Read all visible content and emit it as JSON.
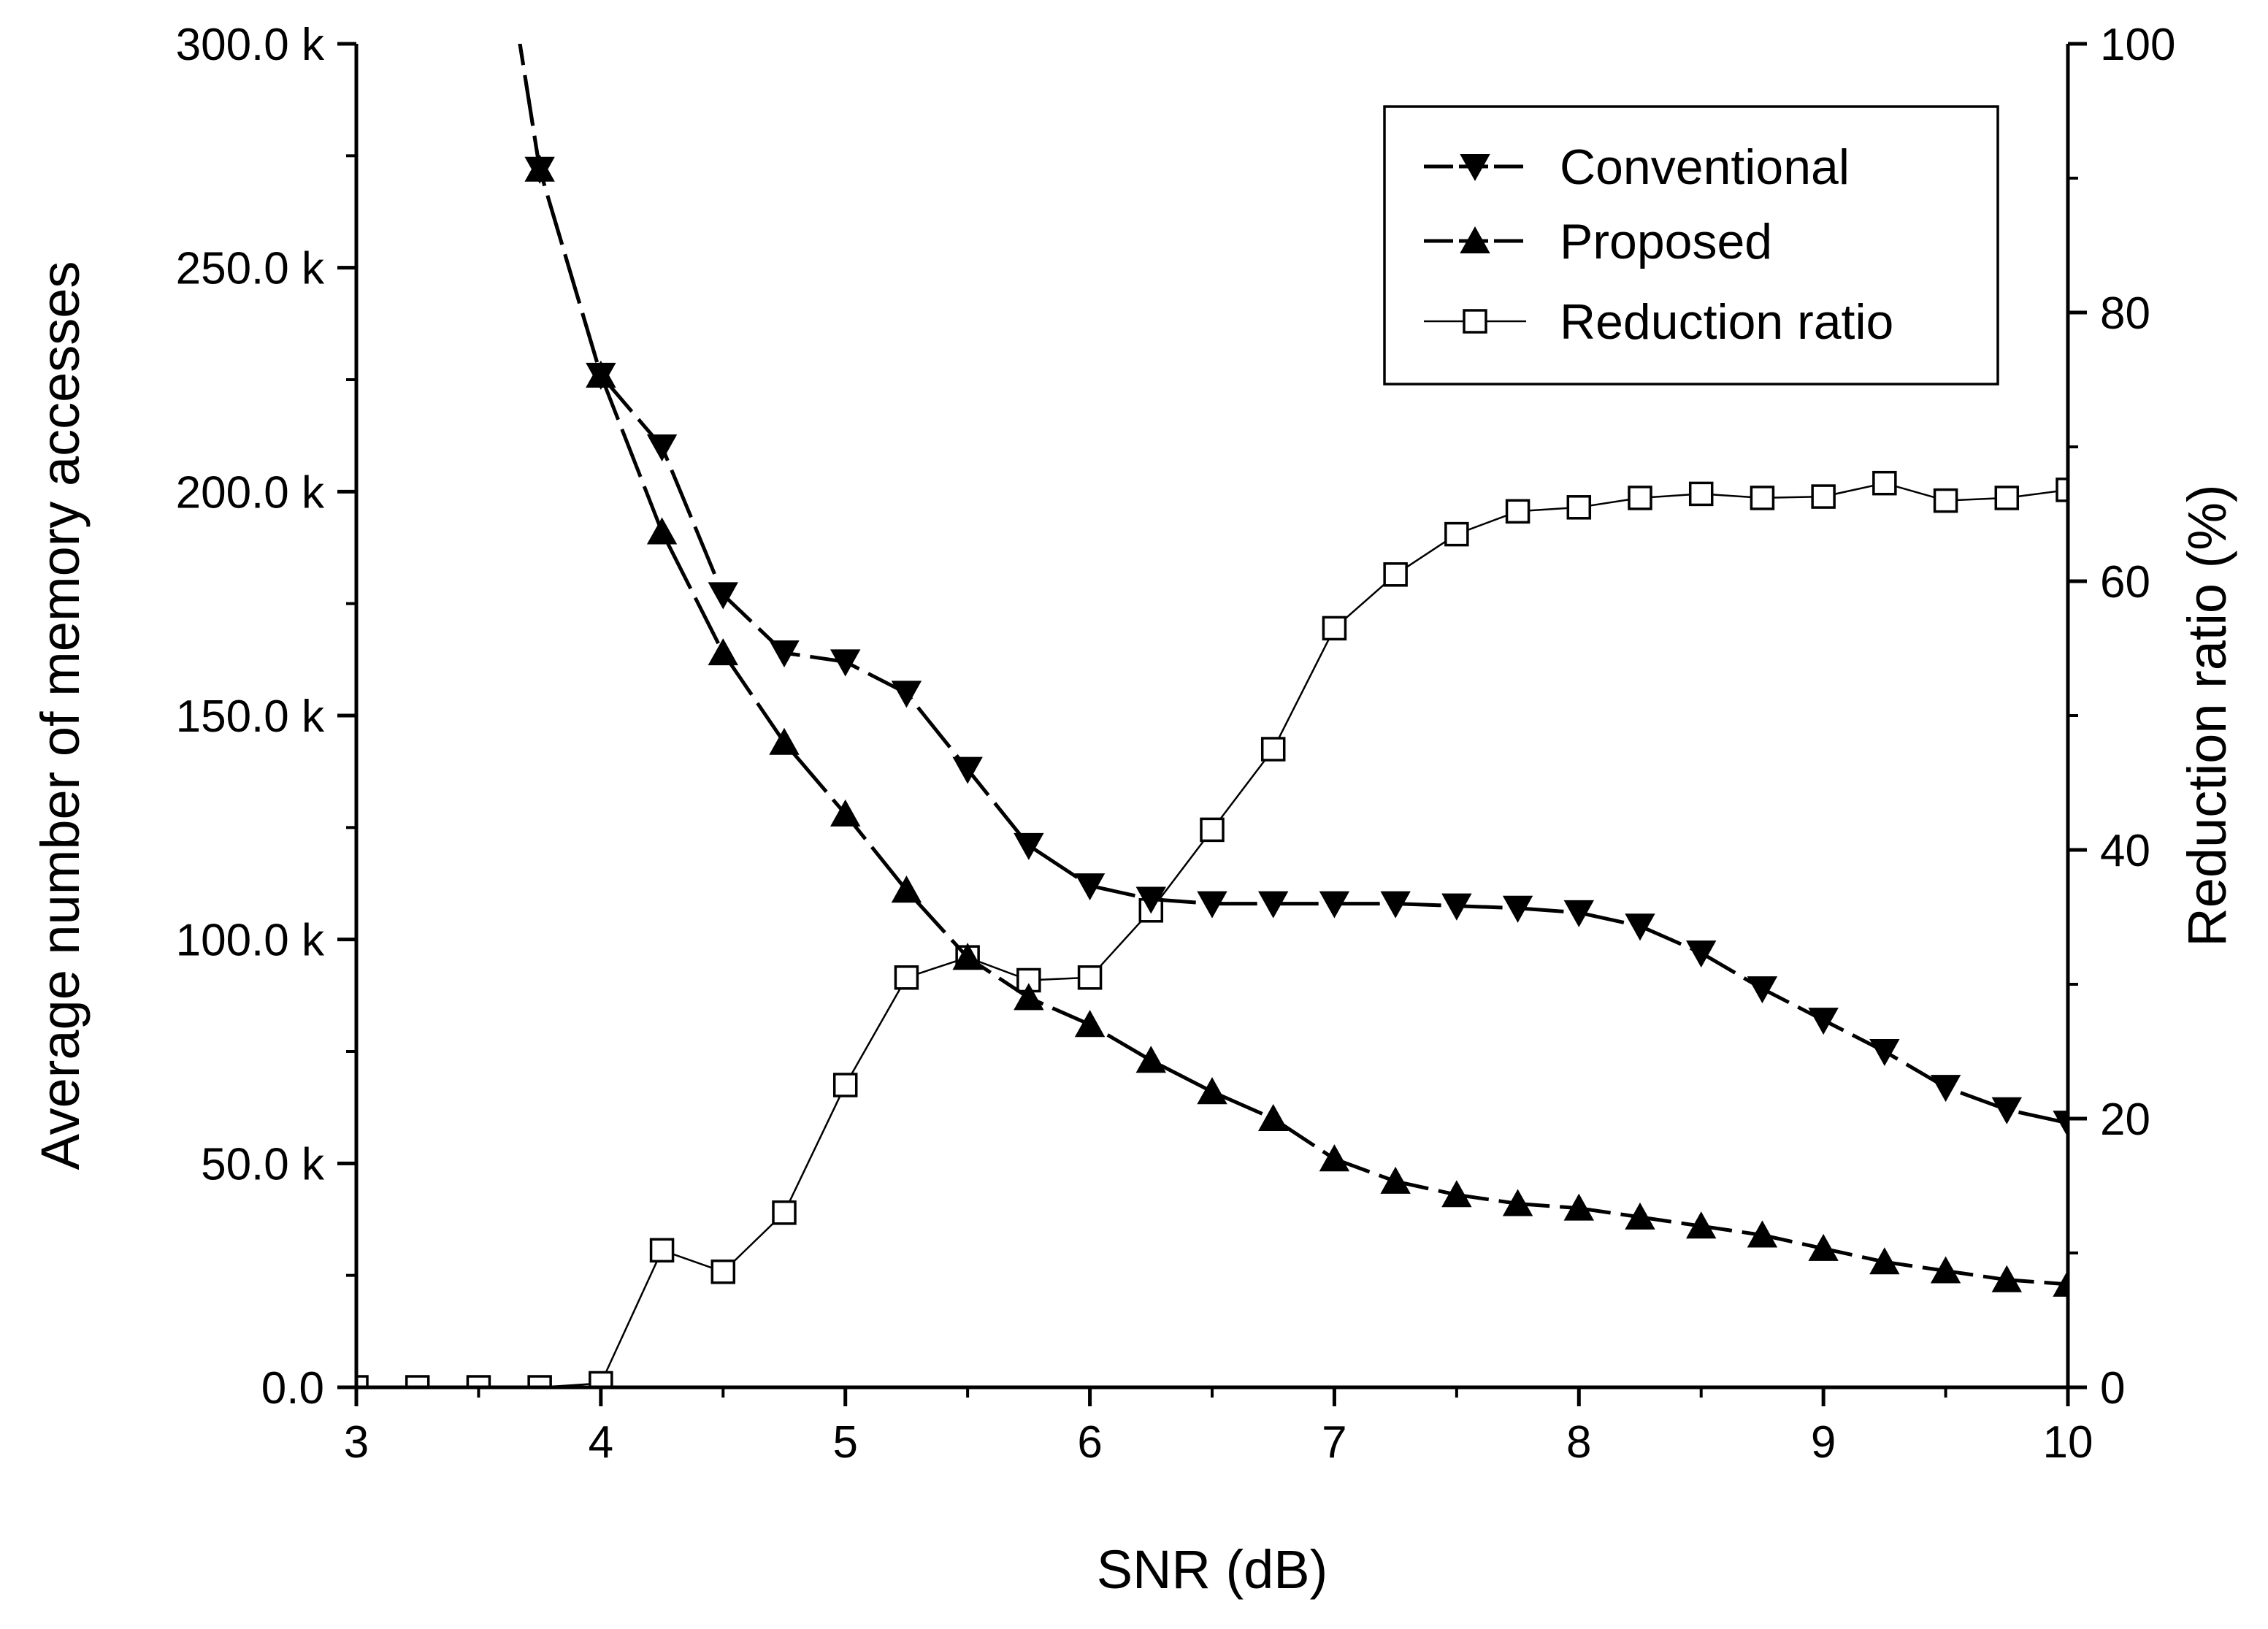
{
  "chart_data": {
    "type": "line",
    "xlabel": "SNR (dB)",
    "ylabel": "Average number of memory accesses",
    "y2label": "Reduction ratio (%)",
    "xlim": [
      3,
      10
    ],
    "ylim": [
      0,
      300000
    ],
    "y2lim": [
      0,
      100
    ],
    "x_ticks": [
      "3",
      "4",
      "5",
      "6",
      "7",
      "8",
      "9",
      "10"
    ],
    "y_ticks": [
      "0.0",
      "50.0 k",
      "100.0 k",
      "150.0 k",
      "200.0 k",
      "250.0 k",
      "300.0 k"
    ],
    "y2_ticks": [
      "0",
      "20",
      "40",
      "60",
      "80",
      "100"
    ],
    "grid": false,
    "legend_position": "top-right",
    "series": [
      {
        "name": "Conventional",
        "axis": "left",
        "marker": "triangle-down",
        "line": "long-dash",
        "color": "#000000",
        "x": [
          3.75,
          4.0,
          4.25,
          4.5,
          4.75,
          5.0,
          5.25,
          5.5,
          5.75,
          6.0,
          6.25,
          6.5,
          6.75,
          7.0,
          7.25,
          7.5,
          7.75,
          8.0,
          8.25,
          8.5,
          8.75,
          9.0,
          9.25,
          9.5,
          9.75,
          10.0
        ],
        "y": [
          272000,
          226000,
          210000,
          177000,
          164000,
          162000,
          155000,
          138000,
          121000,
          112000,
          109000,
          108000,
          108000,
          108000,
          108000,
          107500,
          107000,
          106000,
          103000,
          97000,
          89000,
          82000,
          75000,
          67000,
          62000,
          59000
        ]
      },
      {
        "name": "Proposed",
        "axis": "left",
        "marker": "triangle-up",
        "line": "long-dash",
        "color": "#000000",
        "x": [
          3.75,
          4.0,
          4.25,
          4.5,
          4.75,
          5.0,
          5.25,
          5.5,
          5.75,
          6.0,
          6.25,
          6.5,
          6.75,
          7.0,
          7.25,
          7.5,
          7.75,
          8.0,
          8.25,
          8.5,
          8.75,
          9.0,
          9.25,
          9.5,
          9.75,
          10.0
        ],
        "y": [
          272000,
          226000,
          191000,
          164000,
          144000,
          128000,
          111000,
          96000,
          87000,
          81000,
          73000,
          66000,
          60000,
          51000,
          46000,
          43000,
          41000,
          40000,
          38000,
          36000,
          34000,
          31000,
          28000,
          26000,
          24000,
          23000
        ]
      },
      {
        "name": "Reduction ratio",
        "axis": "right",
        "marker": "square-open",
        "line": "solid-thin",
        "color": "#000000",
        "x": [
          3.0,
          3.25,
          3.5,
          3.75,
          4.0,
          4.25,
          4.5,
          4.75,
          5.0,
          5.25,
          5.5,
          5.75,
          6.0,
          6.25,
          6.5,
          6.75,
          7.0,
          7.25,
          7.5,
          7.75,
          8.0,
          8.25,
          8.5,
          8.75,
          9.0,
          9.25,
          9.5,
          9.75,
          10.0
        ],
        "y": [
          0,
          0,
          0,
          0,
          0.3,
          10.2,
          8.6,
          13.0,
          22.5,
          30.5,
          32.0,
          30.3,
          30.5,
          35.5,
          41.5,
          47.5,
          56.5,
          60.5,
          63.5,
          65.2,
          65.5,
          66.2,
          66.5,
          66.2,
          66.3,
          67.3,
          66.0,
          66.2,
          66.8
        ]
      }
    ]
  }
}
